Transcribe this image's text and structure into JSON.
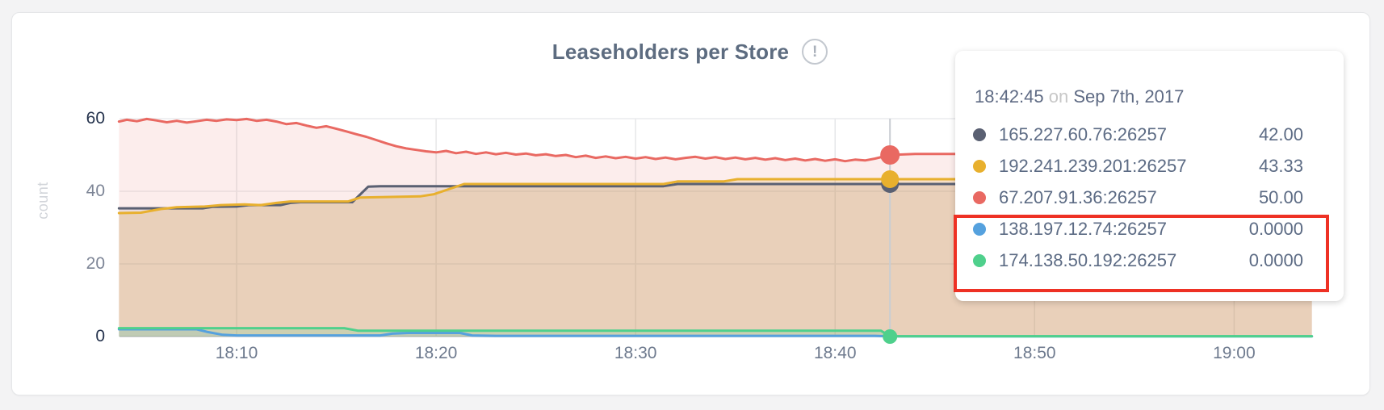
{
  "header": {
    "title": "Leaseholders per Store",
    "info_icon_glyph": "!"
  },
  "tooltip": {
    "time": "18:42:45",
    "connector": "on",
    "date": "Sep 7th, 2017",
    "rows": [
      {
        "name": "165.227.60.76:26257",
        "value": "42.00",
        "color": "#5a6072"
      },
      {
        "name": "192.241.239.201:26257",
        "value": "43.33",
        "color": "#e8b02e"
      },
      {
        "name": "67.207.91.36:26257",
        "value": "50.00",
        "color": "#e96962"
      },
      {
        "name": "138.197.12.74:26257",
        "value": "0.0000",
        "color": "#55a1de"
      },
      {
        "name": "174.138.50.192:26257",
        "value": "0.0000",
        "color": "#4fd08c"
      }
    ]
  },
  "annotation": {
    "description": "red highlight box around the two zero-value nodes",
    "color": "#ee3124"
  },
  "chart_data": {
    "type": "area",
    "title": "Leaseholders per Store",
    "ylabel": "count",
    "grid": true,
    "x_axis": {
      "unit": "minutes after 18:00 on Sep 7th 2017",
      "start_min": 4.13,
      "end_min": 63.87,
      "ticks": [
        {
          "t": 10,
          "label": "18:10"
        },
        {
          "t": 20,
          "label": "18:20"
        },
        {
          "t": 30,
          "label": "18:30"
        },
        {
          "t": 40,
          "label": "18:40"
        },
        {
          "t": 50,
          "label": "18:50"
        },
        {
          "t": 60,
          "label": "19:00"
        }
      ]
    },
    "y_axis": {
      "min": 0,
      "max": 60,
      "ticks": [
        {
          "v": 0,
          "label": "0",
          "strong": true
        },
        {
          "v": 20,
          "label": "20",
          "strong": false
        },
        {
          "v": 40,
          "label": "40",
          "strong": false
        },
        {
          "v": 60,
          "label": "60",
          "strong": true
        }
      ]
    },
    "hover": {
      "t": 42.75,
      "time_label": "18:42:45",
      "line_color": "#c9cdd3"
    },
    "series": [
      {
        "name": "165.227.60.76:26257",
        "color": "#5a6072",
        "fill_opacity": 0.12,
        "hover_value": 42.0,
        "dot_r": 11,
        "points": [
          [
            4.1,
            35.3
          ],
          [
            8.3,
            35.3
          ],
          [
            8.8,
            35.7
          ],
          [
            10.0,
            35.8
          ],
          [
            10.6,
            36.2
          ],
          [
            12.2,
            36.2
          ],
          [
            12.7,
            36.8
          ],
          [
            13.2,
            37.0
          ],
          [
            15.8,
            37.0
          ],
          [
            16.6,
            41.3
          ],
          [
            17.2,
            41.4
          ],
          [
            31.4,
            41.4
          ],
          [
            32.1,
            42.0
          ],
          [
            63.9,
            42.0
          ]
        ]
      },
      {
        "name": "192.241.239.201:26257",
        "color": "#e8b02e",
        "fill_opacity": 0.2,
        "hover_value": 43.33,
        "dot_r": 11,
        "points": [
          [
            4.1,
            34.0
          ],
          [
            5.2,
            34.1
          ],
          [
            6.2,
            35.1
          ],
          [
            7.0,
            35.6
          ],
          [
            8.4,
            35.8
          ],
          [
            9.2,
            36.2
          ],
          [
            10.4,
            36.4
          ],
          [
            11.2,
            36.2
          ],
          [
            12.0,
            36.8
          ],
          [
            12.7,
            37.2
          ],
          [
            15.6,
            37.2
          ],
          [
            16.2,
            38.3
          ],
          [
            19.2,
            38.6
          ],
          [
            19.9,
            39.2
          ],
          [
            21.4,
            42.0
          ],
          [
            31.4,
            42.0
          ],
          [
            32.1,
            42.7
          ],
          [
            34.4,
            42.7
          ],
          [
            35.1,
            43.33
          ],
          [
            63.9,
            43.33
          ]
        ]
      },
      {
        "name": "67.207.91.36:26257",
        "color": "#e96962",
        "fill_opacity": 0.12,
        "hover_value": 50.0,
        "dot_r": 12,
        "points": [
          [
            4.1,
            59.2
          ],
          [
            4.5,
            59.7
          ],
          [
            5.0,
            59.3
          ],
          [
            5.5,
            59.9
          ],
          [
            6.0,
            59.5
          ],
          [
            6.5,
            59.0
          ],
          [
            7.0,
            59.4
          ],
          [
            7.5,
            58.9
          ],
          [
            8.0,
            59.3
          ],
          [
            8.5,
            59.7
          ],
          [
            9.0,
            59.4
          ],
          [
            9.5,
            59.8
          ],
          [
            10.0,
            59.6
          ],
          [
            10.5,
            59.9
          ],
          [
            11.0,
            59.4
          ],
          [
            11.5,
            59.7
          ],
          [
            12.0,
            59.2
          ],
          [
            12.5,
            58.5
          ],
          [
            13.0,
            58.8
          ],
          [
            13.5,
            58.1
          ],
          [
            14.0,
            57.5
          ],
          [
            14.5,
            57.9
          ],
          [
            15.0,
            57.2
          ],
          [
            15.5,
            56.5
          ],
          [
            16.0,
            55.7
          ],
          [
            16.5,
            55.0
          ],
          [
            17.0,
            54.1
          ],
          [
            17.5,
            53.2
          ],
          [
            18.0,
            52.4
          ],
          [
            18.5,
            51.8
          ],
          [
            19.0,
            51.4
          ],
          [
            19.5,
            51.0
          ],
          [
            20.0,
            50.7
          ],
          [
            20.5,
            51.1
          ],
          [
            21.0,
            50.5
          ],
          [
            21.5,
            50.9
          ],
          [
            22.0,
            50.3
          ],
          [
            22.5,
            50.7
          ],
          [
            23.0,
            50.2
          ],
          [
            23.5,
            50.6
          ],
          [
            24.0,
            50.1
          ],
          [
            24.5,
            50.4
          ],
          [
            25.0,
            49.9
          ],
          [
            25.5,
            50.2
          ],
          [
            26.0,
            49.7
          ],
          [
            26.5,
            50.0
          ],
          [
            27.0,
            49.4
          ],
          [
            27.5,
            49.8
          ],
          [
            28.0,
            49.2
          ],
          [
            28.5,
            49.6
          ],
          [
            29.0,
            49.1
          ],
          [
            29.5,
            49.5
          ],
          [
            30.0,
            49.0
          ],
          [
            30.5,
            49.4
          ],
          [
            31.0,
            48.9
          ],
          [
            31.5,
            49.3
          ],
          [
            32.0,
            48.8
          ],
          [
            32.5,
            49.2
          ],
          [
            33.0,
            49.5
          ],
          [
            33.5,
            49.0
          ],
          [
            34.0,
            49.4
          ],
          [
            34.5,
            48.9
          ],
          [
            35.0,
            49.3
          ],
          [
            35.5,
            48.8
          ],
          [
            36.0,
            49.2
          ],
          [
            36.5,
            48.7
          ],
          [
            37.0,
            49.1
          ],
          [
            37.5,
            48.6
          ],
          [
            38.0,
            49.0
          ],
          [
            38.5,
            48.5
          ],
          [
            39.0,
            48.9
          ],
          [
            39.5,
            48.4
          ],
          [
            40.0,
            48.8
          ],
          [
            40.5,
            48.3
          ],
          [
            41.0,
            48.7
          ],
          [
            41.5,
            48.5
          ],
          [
            42.0,
            49.0
          ],
          [
            42.75,
            50.0
          ],
          [
            44.0,
            50.3
          ],
          [
            63.9,
            50.3
          ]
        ]
      },
      {
        "name": "138.197.12.74:26257",
        "color": "#55a1de",
        "fill_opacity": 0.1,
        "hover_value": 0.0,
        "dot_r": 8,
        "points": [
          [
            4.1,
            2.0
          ],
          [
            8.0,
            2.0
          ],
          [
            8.5,
            1.3
          ],
          [
            9.3,
            0.5
          ],
          [
            10.0,
            0.3
          ],
          [
            17.2,
            0.3
          ],
          [
            17.8,
            0.8
          ],
          [
            18.6,
            1.0
          ],
          [
            21.2,
            1.0
          ],
          [
            21.8,
            0.3
          ],
          [
            23.0,
            0.2
          ],
          [
            42.0,
            0.2
          ],
          [
            42.75,
            0.05
          ],
          [
            63.9,
            0.05
          ]
        ]
      },
      {
        "name": "174.138.50.192:26257",
        "color": "#4fd08c",
        "fill_opacity": 0.18,
        "hover_value": 0.0,
        "dot_r": 9,
        "points": [
          [
            4.1,
            2.3
          ],
          [
            15.4,
            2.3
          ],
          [
            16.1,
            1.6
          ],
          [
            42.3,
            1.6
          ],
          [
            42.75,
            0.1
          ],
          [
            63.9,
            0.1
          ]
        ]
      }
    ]
  }
}
